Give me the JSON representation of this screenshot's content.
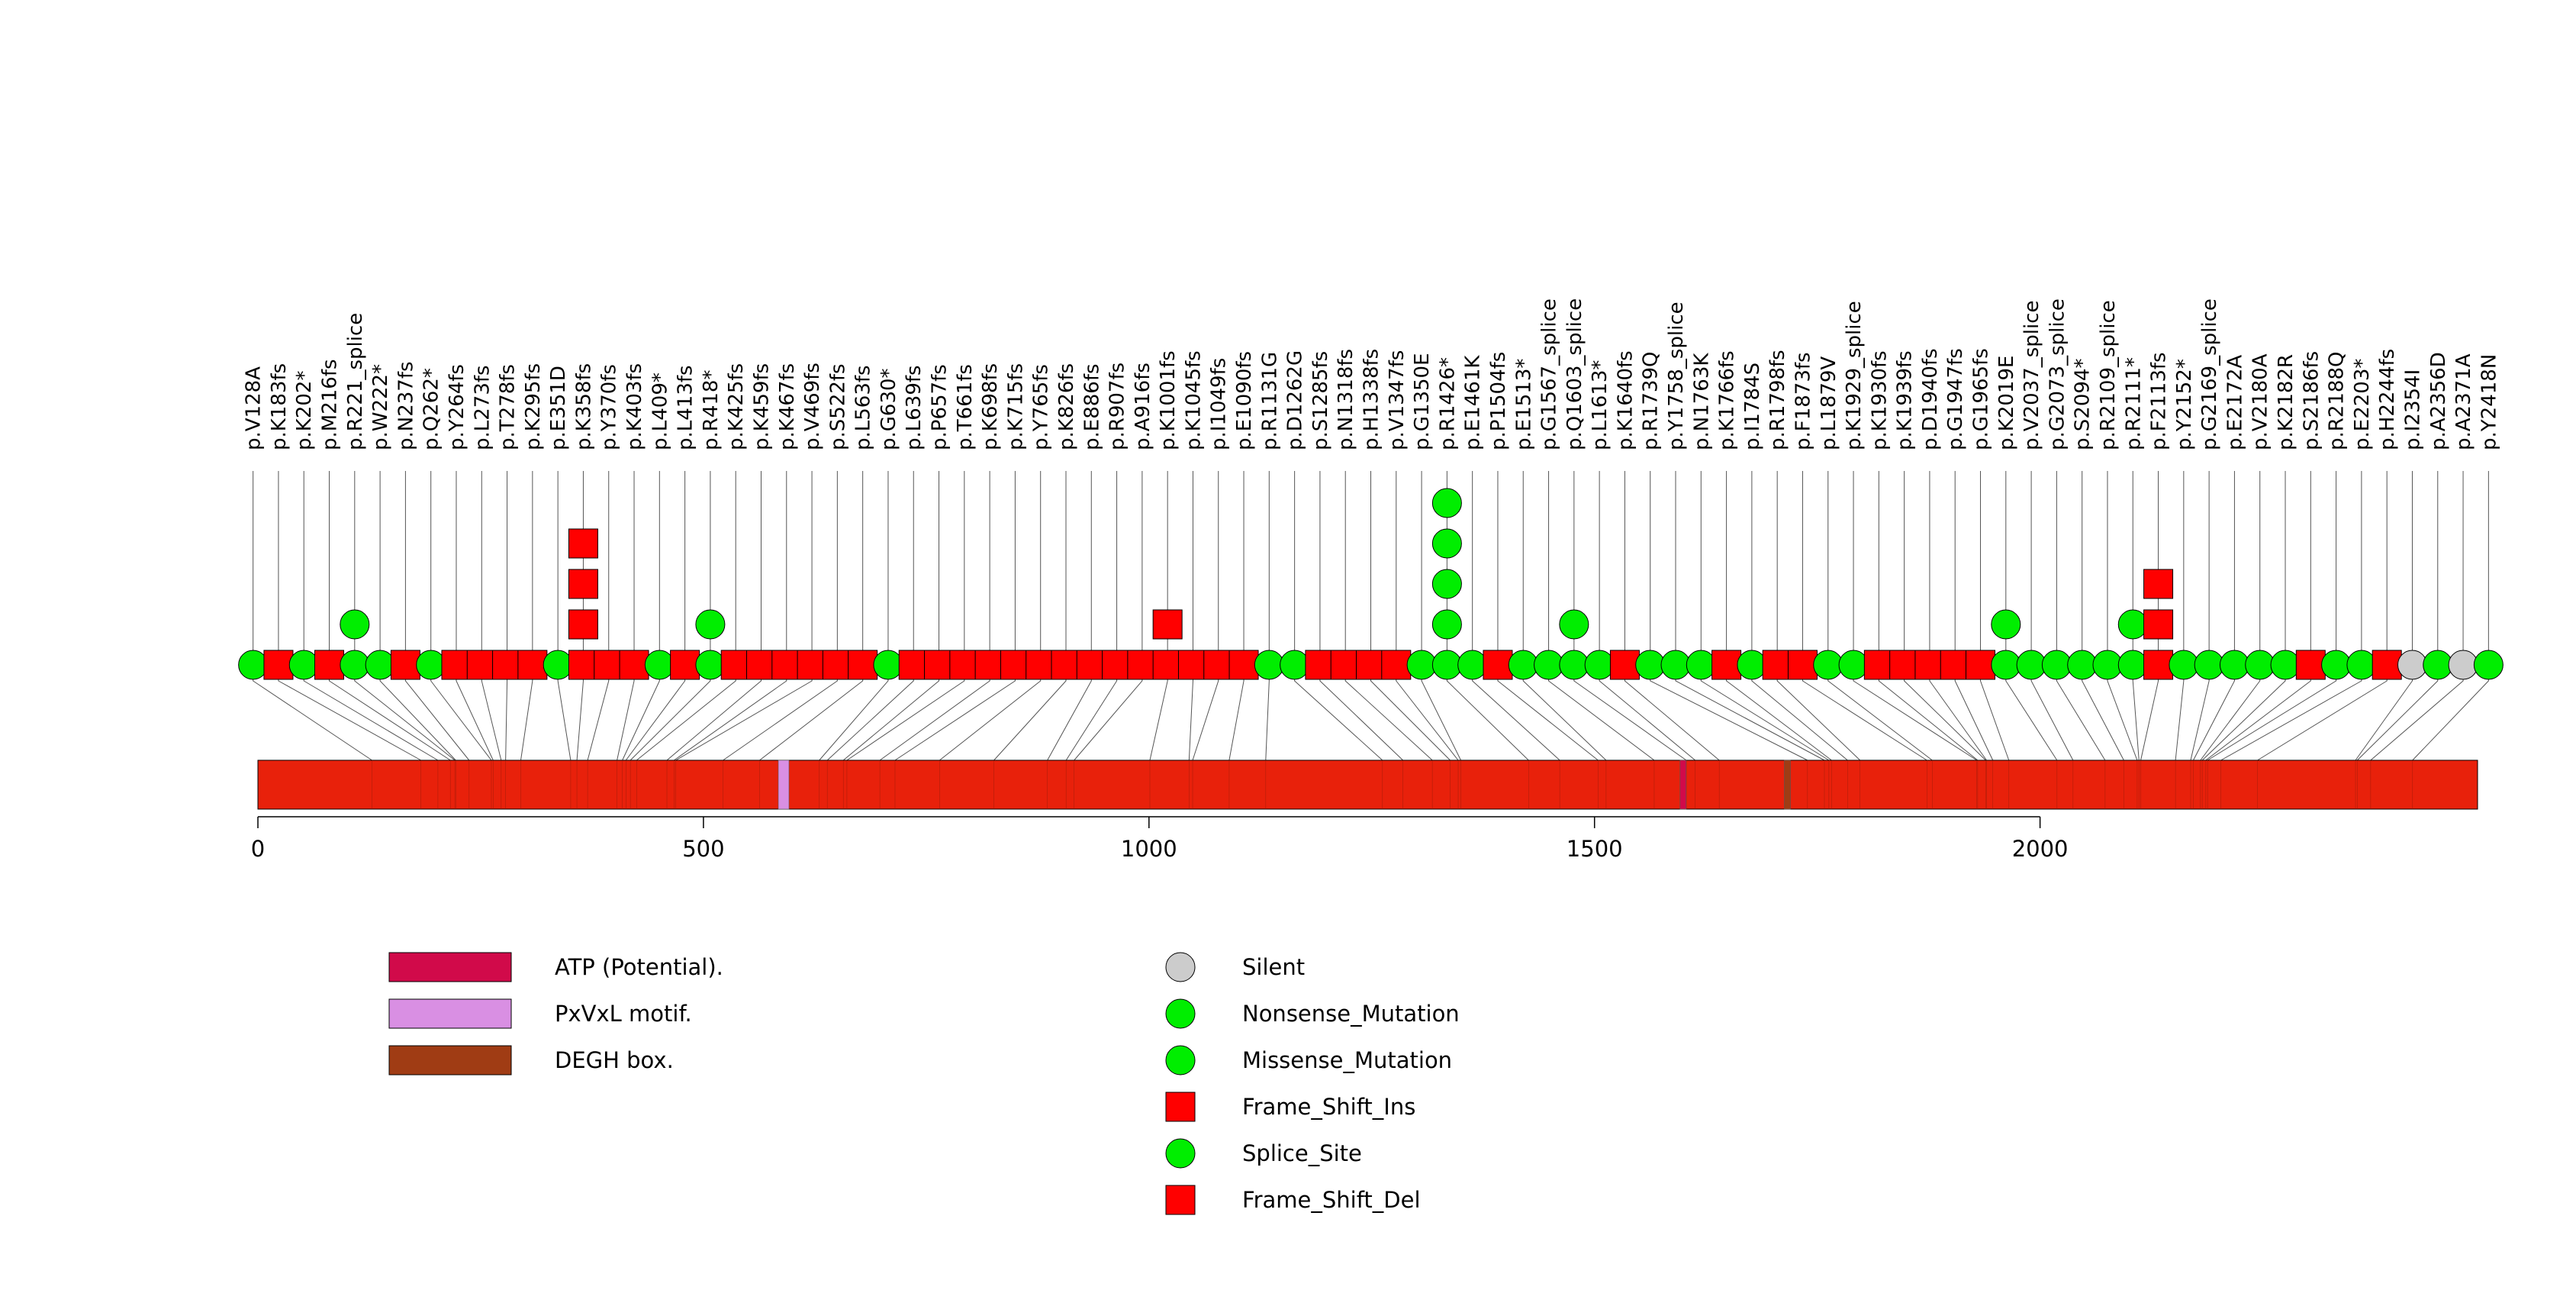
{
  "chart_data": {
    "type": "lollipop",
    "protein_length": 2491,
    "axis": {
      "min": 0,
      "max": 2491,
      "ticks": [
        0,
        500,
        1000,
        1500,
        2000
      ]
    },
    "mutations": [
      {
        "label": "p.V128A",
        "pos": 128,
        "type": "Missense_Mutation",
        "count": 1
      },
      {
        "label": "p.K183fs",
        "pos": 183,
        "type": "Frame_Shift_Del",
        "count": 1
      },
      {
        "label": "p.K202*",
        "pos": 202,
        "type": "Nonsense_Mutation",
        "count": 1
      },
      {
        "label": "p.M216fs",
        "pos": 216,
        "type": "Frame_Shift_Del",
        "count": 1
      },
      {
        "label": "p.R221_splice",
        "pos": 221,
        "type": "Splice_Site",
        "count": 2
      },
      {
        "label": "p.W222*",
        "pos": 222,
        "type": "Nonsense_Mutation",
        "count": 1
      },
      {
        "label": "p.N237fs",
        "pos": 237,
        "type": "Frame_Shift_Del",
        "count": 1
      },
      {
        "label": "p.Q262*",
        "pos": 262,
        "type": "Nonsense_Mutation",
        "count": 1
      },
      {
        "label": "p.Y264fs",
        "pos": 264,
        "type": "Frame_Shift_Del",
        "count": 1
      },
      {
        "label": "p.L273fs",
        "pos": 273,
        "type": "Frame_Shift_Del",
        "count": 1
      },
      {
        "label": "p.T278fs",
        "pos": 278,
        "type": "Frame_Shift_Del",
        "count": 1
      },
      {
        "label": "p.K295fs",
        "pos": 295,
        "type": "Frame_Shift_Del",
        "count": 1
      },
      {
        "label": "p.E351D",
        "pos": 351,
        "type": "Missense_Mutation",
        "count": 1
      },
      {
        "label": "p.K358fs",
        "pos": 358,
        "type": "Frame_Shift_Del",
        "count": 4
      },
      {
        "label": "p.Y370fs",
        "pos": 370,
        "type": "Frame_Shift_Del",
        "count": 1
      },
      {
        "label": "p.K403fs",
        "pos": 403,
        "type": "Frame_Shift_Del",
        "count": 1
      },
      {
        "label": "p.L409*",
        "pos": 409,
        "type": "Nonsense_Mutation",
        "count": 1
      },
      {
        "label": "p.L413fs",
        "pos": 413,
        "type": "Frame_Shift_Del",
        "count": 1
      },
      {
        "label": "p.R418*",
        "pos": 418,
        "type": "Nonsense_Mutation",
        "count": 2
      },
      {
        "label": "p.K425fs",
        "pos": 425,
        "type": "Frame_Shift_Del",
        "count": 1
      },
      {
        "label": "p.K459fs",
        "pos": 459,
        "type": "Frame_Shift_Del",
        "count": 1
      },
      {
        "label": "p.K467fs",
        "pos": 467,
        "type": "Frame_Shift_Del",
        "count": 1
      },
      {
        "label": "p.V469fs",
        "pos": 469,
        "type": "Frame_Shift_Del",
        "count": 1
      },
      {
        "label": "p.S522fs",
        "pos": 522,
        "type": "Frame_Shift_Del",
        "count": 1
      },
      {
        "label": "p.L563fs",
        "pos": 563,
        "type": "Frame_Shift_Del",
        "count": 1
      },
      {
        "label": "p.G630*",
        "pos": 630,
        "type": "Nonsense_Mutation",
        "count": 1
      },
      {
        "label": "p.L639fs",
        "pos": 639,
        "type": "Frame_Shift_Del",
        "count": 1
      },
      {
        "label": "p.P657fs",
        "pos": 657,
        "type": "Frame_Shift_Del",
        "count": 1
      },
      {
        "label": "p.T661fs",
        "pos": 661,
        "type": "Frame_Shift_Del",
        "count": 1
      },
      {
        "label": "p.K698fs",
        "pos": 698,
        "type": "Frame_Shift_Del",
        "count": 1
      },
      {
        "label": "p.K715fs",
        "pos": 715,
        "type": "Frame_Shift_Del",
        "count": 1
      },
      {
        "label": "p.Y765fs",
        "pos": 765,
        "type": "Frame_Shift_Del",
        "count": 1
      },
      {
        "label": "p.K826fs",
        "pos": 826,
        "type": "Frame_Shift_Del",
        "count": 1
      },
      {
        "label": "p.E886fs",
        "pos": 886,
        "type": "Frame_Shift_Del",
        "count": 1
      },
      {
        "label": "p.R907fs",
        "pos": 907,
        "type": "Frame_Shift_Del",
        "count": 1
      },
      {
        "label": "p.A916fs",
        "pos": 916,
        "type": "Frame_Shift_Del",
        "count": 1
      },
      {
        "label": "p.K1001fs",
        "pos": 1001,
        "type": "Frame_Shift_Del",
        "count": 2
      },
      {
        "label": "p.K1045fs",
        "pos": 1045,
        "type": "Frame_Shift_Del",
        "count": 1
      },
      {
        "label": "p.I1049fs",
        "pos": 1049,
        "type": "Frame_Shift_Del",
        "count": 1
      },
      {
        "label": "p.E1090fs",
        "pos": 1090,
        "type": "Frame_Shift_Del",
        "count": 1
      },
      {
        "label": "p.R1131G",
        "pos": 1131,
        "type": "Missense_Mutation",
        "count": 1
      },
      {
        "label": "p.D1262G",
        "pos": 1262,
        "type": "Missense_Mutation",
        "count": 1
      },
      {
        "label": "p.S1285fs",
        "pos": 1285,
        "type": "Frame_Shift_Del",
        "count": 1
      },
      {
        "label": "p.N1318fs",
        "pos": 1318,
        "type": "Frame_Shift_Del",
        "count": 1
      },
      {
        "label": "p.H1338fs",
        "pos": 1338,
        "type": "Frame_Shift_Del",
        "count": 1
      },
      {
        "label": "p.V1347fs",
        "pos": 1347,
        "type": "Frame_Shift_Del",
        "count": 1
      },
      {
        "label": "p.G1350E",
        "pos": 1350,
        "type": "Missense_Mutation",
        "count": 1
      },
      {
        "label": "p.R1426*",
        "pos": 1426,
        "type": "Nonsense_Mutation",
        "count": 5
      },
      {
        "label": "p.E1461K",
        "pos": 1461,
        "type": "Missense_Mutation",
        "count": 1
      },
      {
        "label": "p.P1504fs",
        "pos": 1504,
        "type": "Frame_Shift_Del",
        "count": 1
      },
      {
        "label": "p.E1513*",
        "pos": 1513,
        "type": "Nonsense_Mutation",
        "count": 1
      },
      {
        "label": "p.G1567_splice",
        "pos": 1567,
        "type": "Splice_Site",
        "count": 1
      },
      {
        "label": "p.Q1603_splice",
        "pos": 1603,
        "type": "Splice_Site",
        "count": 2
      },
      {
        "label": "p.L1613*",
        "pos": 1613,
        "type": "Nonsense_Mutation",
        "count": 1
      },
      {
        "label": "p.K1640fs",
        "pos": 1640,
        "type": "Frame_Shift_Del",
        "count": 1
      },
      {
        "label": "p.R1739Q",
        "pos": 1739,
        "type": "Missense_Mutation",
        "count": 1
      },
      {
        "label": "p.Y1758_splice",
        "pos": 1758,
        "type": "Splice_Site",
        "count": 1
      },
      {
        "label": "p.N1763K",
        "pos": 1763,
        "type": "Missense_Mutation",
        "count": 1
      },
      {
        "label": "p.K1766fs",
        "pos": 1766,
        "type": "Frame_Shift_Del",
        "count": 1
      },
      {
        "label": "p.I1784S",
        "pos": 1784,
        "type": "Missense_Mutation",
        "count": 1
      },
      {
        "label": "p.R1798fs",
        "pos": 1798,
        "type": "Frame_Shift_Del",
        "count": 1
      },
      {
        "label": "p.F1873fs",
        "pos": 1873,
        "type": "Frame_Shift_Del",
        "count": 1
      },
      {
        "label": "p.L1879V",
        "pos": 1879,
        "type": "Missense_Mutation",
        "count": 1
      },
      {
        "label": "p.K1929_splice",
        "pos": 1929,
        "type": "Splice_Site",
        "count": 1
      },
      {
        "label": "p.K1930fs",
        "pos": 1930,
        "type": "Frame_Shift_Del",
        "count": 1
      },
      {
        "label": "p.K1939fs",
        "pos": 1939,
        "type": "Frame_Shift_Del",
        "count": 1
      },
      {
        "label": "p.D1940fs",
        "pos": 1940,
        "type": "Frame_Shift_Del",
        "count": 1
      },
      {
        "label": "p.G1947fs",
        "pos": 1947,
        "type": "Frame_Shift_Del",
        "count": 1
      },
      {
        "label": "p.G1965fs",
        "pos": 1965,
        "type": "Frame_Shift_Del",
        "count": 1
      },
      {
        "label": "p.K2019E",
        "pos": 2019,
        "type": "Missense_Mutation",
        "count": 2
      },
      {
        "label": "p.V2037_splice",
        "pos": 2037,
        "type": "Splice_Site",
        "count": 1
      },
      {
        "label": "p.G2073_splice",
        "pos": 2073,
        "type": "Splice_Site",
        "count": 1
      },
      {
        "label": "p.S2094*",
        "pos": 2094,
        "type": "Nonsense_Mutation",
        "count": 1
      },
      {
        "label": "p.R2109_splice",
        "pos": 2109,
        "type": "Splice_Site",
        "count": 1
      },
      {
        "label": "p.R2111*",
        "pos": 2111,
        "type": "Nonsense_Mutation",
        "count": 2
      },
      {
        "label": "p.F2113fs",
        "pos": 2113,
        "type": "Frame_Shift_Del",
        "count": 3
      },
      {
        "label": "p.Y2152*",
        "pos": 2152,
        "type": "Nonsense_Mutation",
        "count": 1
      },
      {
        "label": "p.G2169_splice",
        "pos": 2169,
        "type": "Splice_Site",
        "count": 1
      },
      {
        "label": "p.E2172A",
        "pos": 2172,
        "type": "Missense_Mutation",
        "count": 1
      },
      {
        "label": "p.V2180A",
        "pos": 2180,
        "type": "Missense_Mutation",
        "count": 1
      },
      {
        "label": "p.K2182R",
        "pos": 2182,
        "type": "Missense_Mutation",
        "count": 1
      },
      {
        "label": "p.S2186fs",
        "pos": 2186,
        "type": "Frame_Shift_Del",
        "count": 1
      },
      {
        "label": "p.R2188Q",
        "pos": 2188,
        "type": "Missense_Mutation",
        "count": 1
      },
      {
        "label": "p.E2203*",
        "pos": 2203,
        "type": "Nonsense_Mutation",
        "count": 1
      },
      {
        "label": "p.H2244fs",
        "pos": 2244,
        "type": "Frame_Shift_Del",
        "count": 1
      },
      {
        "label": "p.I2354I",
        "pos": 2354,
        "type": "Silent",
        "count": 1
      },
      {
        "label": "p.A2356D",
        "pos": 2356,
        "type": "Missense_Mutation",
        "count": 1
      },
      {
        "label": "p.A2371A",
        "pos": 2371,
        "type": "Silent",
        "count": 1
      },
      {
        "label": "p.Y2418N",
        "pos": 2418,
        "type": "Missense_Mutation",
        "count": 1
      }
    ],
    "domains": [
      {
        "name": "PxVxL motif.",
        "start": 584,
        "end": 596,
        "color": "#d98fe3"
      },
      {
        "name": "ATP (Potential).",
        "start": 1596,
        "end": 1602,
        "color": "#d10a4a"
      },
      {
        "name": "DEGH box.",
        "start": 1713,
        "end": 1716,
        "color": "#a03c14"
      }
    ],
    "domain_legend": [
      {
        "name": "ATP (Potential).",
        "color": "#d10a4a"
      },
      {
        "name": "PxVxL motif.",
        "color": "#d98fe3"
      },
      {
        "name": "DEGH box.",
        "color": "#a03c14"
      }
    ],
    "mutation_legend": [
      {
        "name": "Silent",
        "shape": "circle",
        "color": "#cccccc"
      },
      {
        "name": "Nonsense_Mutation",
        "shape": "circle",
        "color": "#00ee00"
      },
      {
        "name": "Missense_Mutation",
        "shape": "circle",
        "color": "#00ee00"
      },
      {
        "name": "Frame_Shift_Ins",
        "shape": "square",
        "color": "#ff0000"
      },
      {
        "name": "Splice_Site",
        "shape": "circle",
        "color": "#00ee00"
      },
      {
        "name": "Frame_Shift_Del",
        "shape": "square",
        "color": "#ff0000"
      }
    ],
    "colors": {
      "protein_bar": "#e8210b",
      "circle_mut": "#00ee00",
      "square_mut": "#ff0000",
      "silent": "#cccccc"
    }
  }
}
